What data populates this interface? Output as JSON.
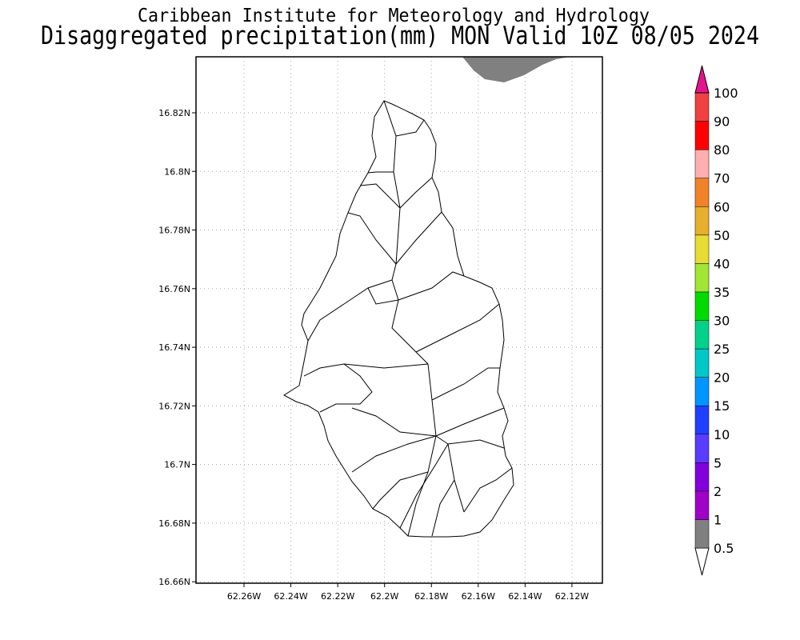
{
  "map": {
    "title": "Caribbean Institute for Meteorology and Hydrology",
    "subtitle": "Disaggregated precipitation(mm) MON Valid 10Z 08/05 2024",
    "xlim": [
      -62.2805,
      -62.107
    ],
    "ylim": [
      16.6595,
      16.8391
    ],
    "xticks": [
      {
        "value": -62.26,
        "label": "62.26W"
      },
      {
        "value": -62.24,
        "label": "62.24W"
      },
      {
        "value": -62.22,
        "label": "62.22W"
      },
      {
        "value": -62.2,
        "label": "62.2W"
      },
      {
        "value": -62.18,
        "label": "62.18W"
      },
      {
        "value": -62.16,
        "label": "62.16W"
      },
      {
        "value": -62.14,
        "label": "62.14W"
      },
      {
        "value": -62.12,
        "label": "62.12W"
      }
    ],
    "yticks": [
      {
        "value": 16.66,
        "label": "16.66N"
      },
      {
        "value": 16.68,
        "label": "16.68N"
      },
      {
        "value": 16.7,
        "label": "16.7N"
      },
      {
        "value": 16.72,
        "label": "16.72N"
      },
      {
        "value": 16.74,
        "label": "16.74N"
      },
      {
        "value": 16.76,
        "label": "16.76N"
      },
      {
        "value": 16.78,
        "label": "16.78N"
      },
      {
        "value": 16.8,
        "label": "16.8N"
      },
      {
        "value": 16.82,
        "label": "16.82N"
      }
    ],
    "grid": true,
    "colorbar": {
      "levels": [
        0.5,
        1,
        2,
        5,
        10,
        15,
        20,
        25,
        30,
        35,
        40,
        50,
        60,
        70,
        80,
        90,
        100
      ],
      "colors": [
        "#ffffff",
        "#808080",
        "#a000c8",
        "#8200dc",
        "#5a3cff",
        "#2040ff",
        "#0096ff",
        "#00c8c8",
        "#00d28c",
        "#00dc00",
        "#a0e632",
        "#e6dc32",
        "#e6af2d",
        "#f08228",
        "#ffafaf",
        "#ff0000",
        "#f04040",
        "#e6148c"
      ]
    }
  }
}
